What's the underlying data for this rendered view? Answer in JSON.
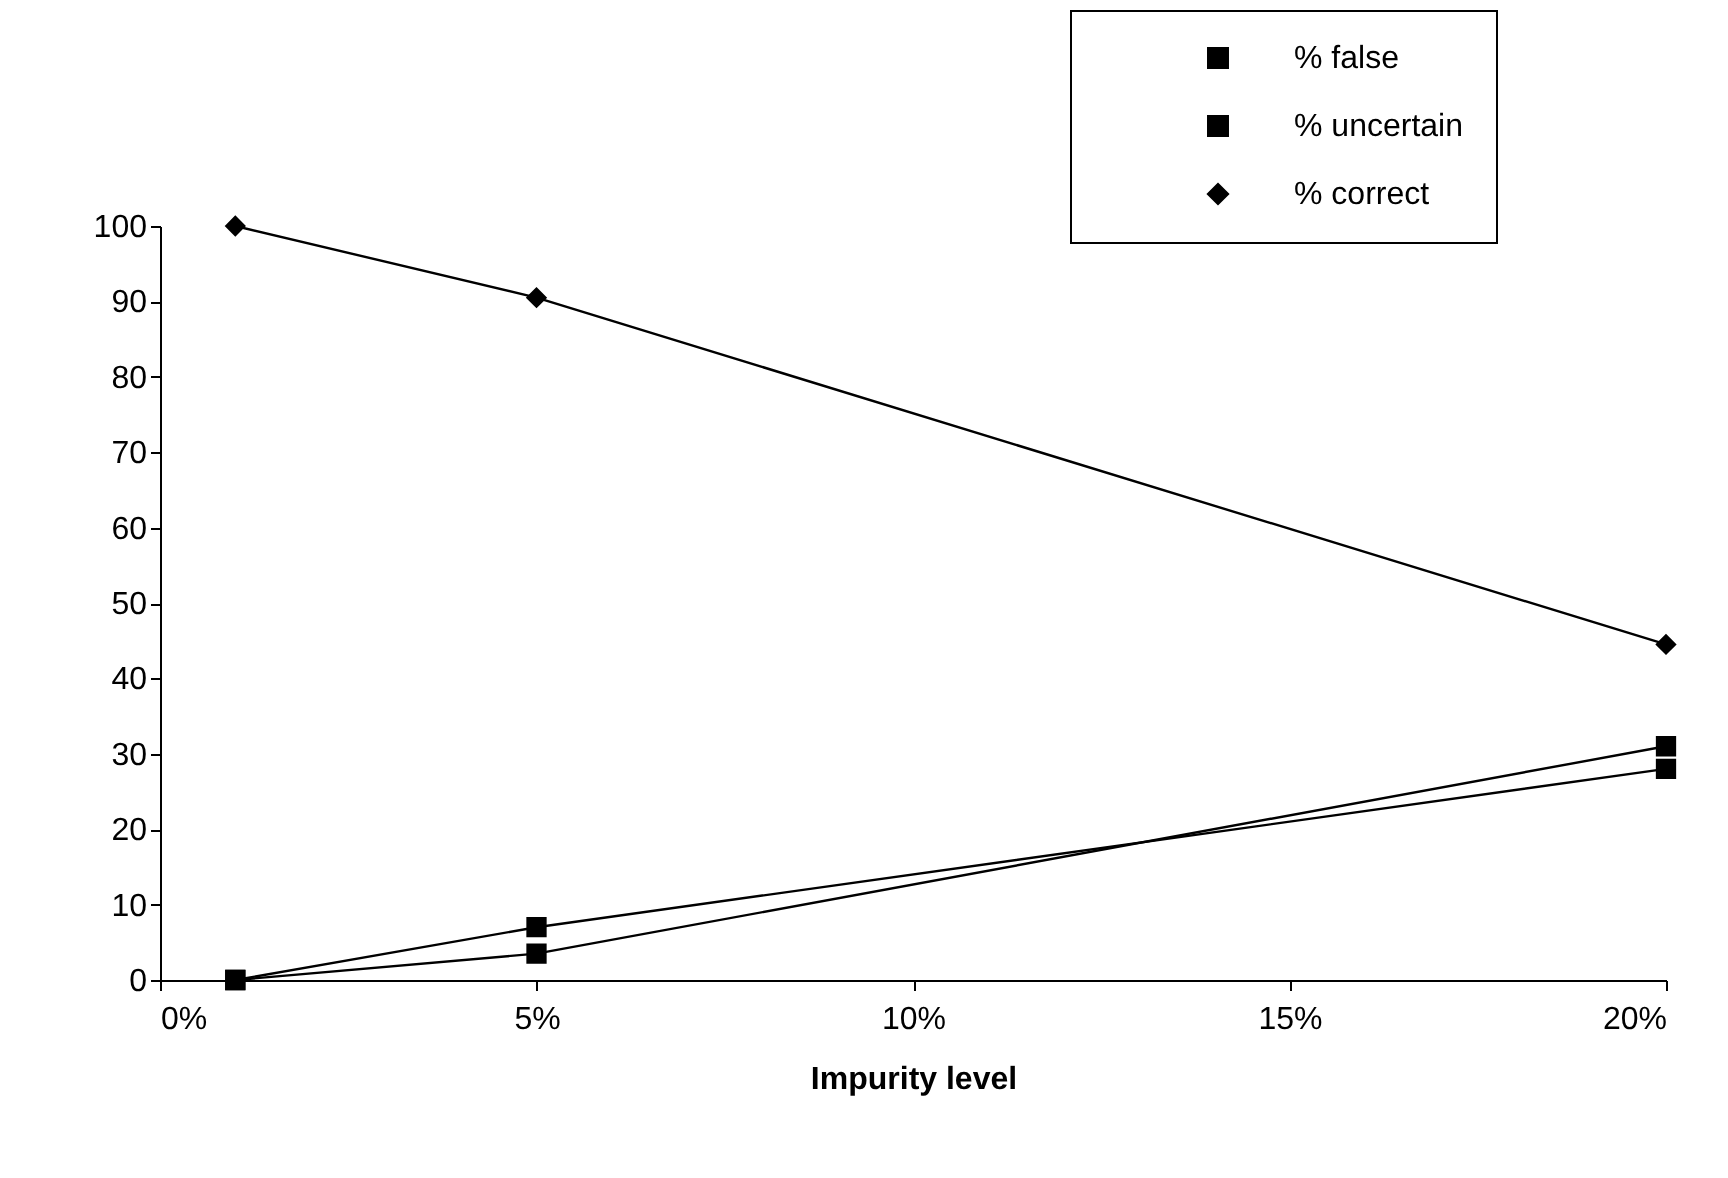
{
  "chart_data": {
    "type": "line",
    "xlabel": "Impurity level",
    "x": [
      1,
      5,
      20
    ],
    "xlim": [
      0,
      20
    ],
    "xticks": [
      {
        "value": 0,
        "label": "0%"
      },
      {
        "value": 5,
        "label": "5%"
      },
      {
        "value": 10,
        "label": "10%"
      },
      {
        "value": 15,
        "label": "15%"
      },
      {
        "value": 20,
        "label": "20%"
      }
    ],
    "ylim": [
      0,
      100
    ],
    "yticks": [
      0,
      10,
      20,
      30,
      40,
      50,
      60,
      70,
      80,
      90,
      100
    ],
    "grid": false,
    "legend": "top right",
    "line_style": "solid",
    "series": [
      {
        "name": "% false",
        "color": "#000000",
        "marker": "square",
        "values": [
          0,
          7,
          28
        ]
      },
      {
        "name": "% uncertain",
        "color": "#000000",
        "marker": "square",
        "values": [
          0,
          3.5,
          31
        ]
      },
      {
        "name": "% correct",
        "color": "#000000",
        "marker": "diamond",
        "values": [
          100,
          90.5,
          44.5
        ]
      }
    ]
  }
}
